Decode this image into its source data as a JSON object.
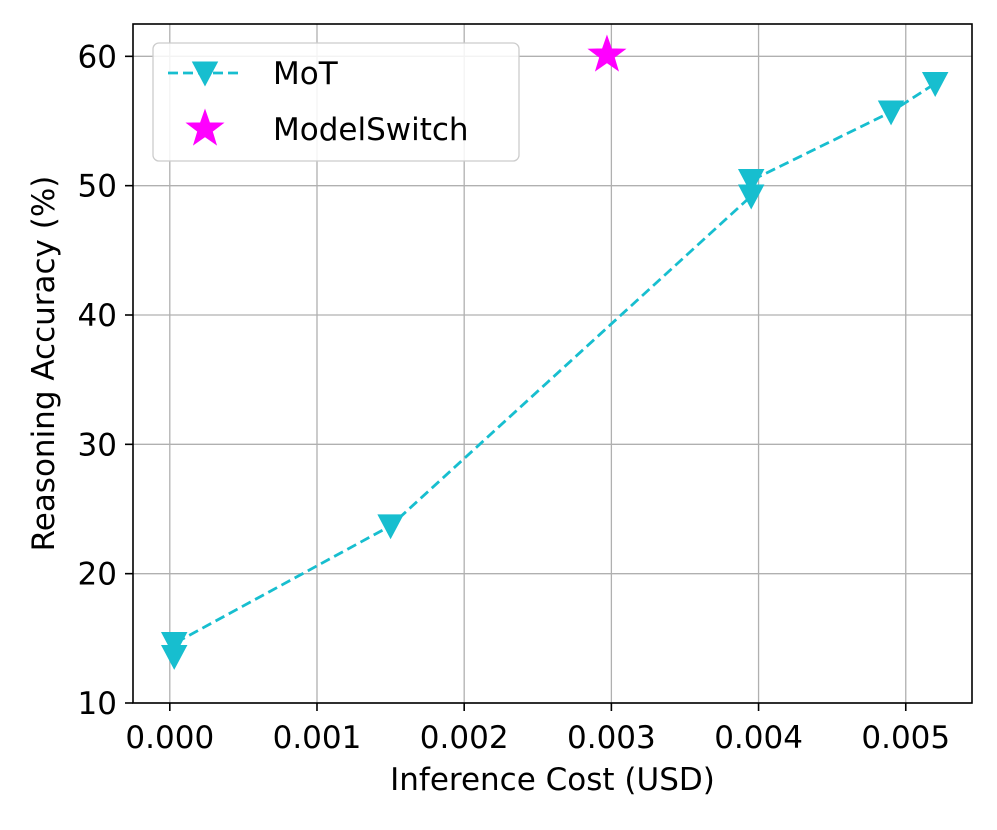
{
  "chart_data": {
    "type": "scatter",
    "xlabel": "Inference Cost (USD)",
    "ylabel": "Reasoning Accuracy (%)",
    "xlim": [
      -0.00025,
      0.00545
    ],
    "ylim": [
      10,
      62.5
    ],
    "x_ticks": [
      0.0,
      0.001,
      0.002,
      0.003,
      0.004,
      0.005
    ],
    "x_tick_labels": [
      "0.000",
      "0.001",
      "0.002",
      "0.003",
      "0.004",
      "0.005"
    ],
    "y_ticks": [
      10,
      20,
      30,
      40,
      50,
      60
    ],
    "y_tick_labels": [
      "10",
      "20",
      "30",
      "40",
      "50",
      "60"
    ],
    "grid": true,
    "legend_position": "top-left",
    "series": [
      {
        "name": "MoT",
        "style": "dashed line with downward-triangle markers",
        "color": "#17becf",
        "x": [
          3e-05,
          3e-05,
          0.0015,
          0.00395,
          0.00395,
          0.0049,
          0.0052
        ],
        "y": [
          13.6,
          14.6,
          23.7,
          49.2,
          50.4,
          55.7,
          57.9
        ]
      },
      {
        "name": "ModelSwitch",
        "style": "star marker",
        "color": "#ff00ff",
        "x": [
          0.00297
        ],
        "y": [
          60.1
        ]
      }
    ]
  }
}
